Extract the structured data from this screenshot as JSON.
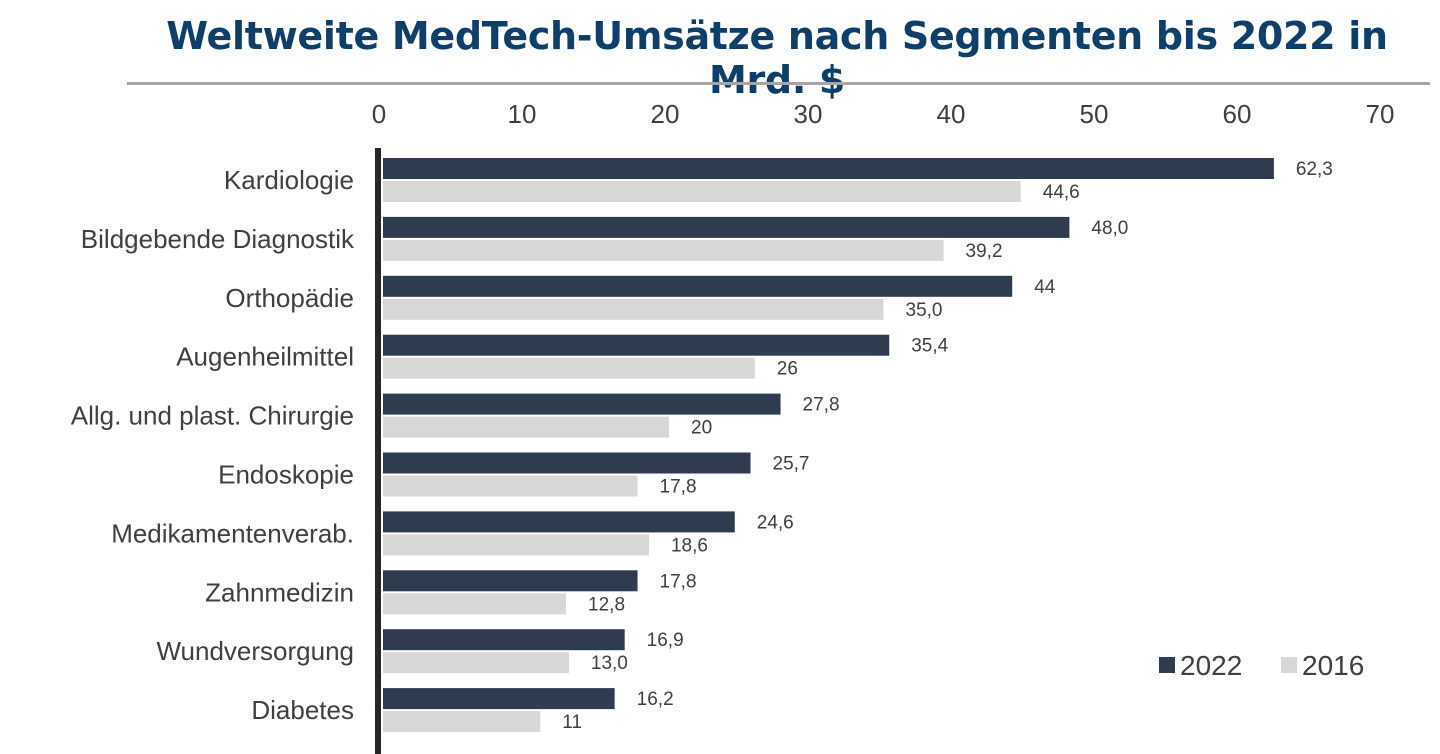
{
  "chart_data": {
    "type": "bar",
    "orientation": "horizontal",
    "title": "Weltweite MedTech-Umsätze nach Segmenten bis 2022 in Mrd. $",
    "xlim": [
      0,
      70
    ],
    "ticks": [
      "0",
      "10",
      "20",
      "30",
      "40",
      "50",
      "60",
      "70"
    ],
    "tick_values": [
      0,
      10,
      20,
      30,
      40,
      50,
      60,
      70
    ],
    "axis_position": "top",
    "grid": false,
    "legend_position": "bottom-right",
    "categories": [
      "Kardiologie",
      "Bildgebende Diagnostik",
      "Orthopädie",
      "Augenheilmittel",
      "Allg. und plast. Chirurgie",
      "Endoskopie",
      "Medikamentenverab.",
      "Zahnmedizin",
      "Wundversorgung",
      "Diabetes"
    ],
    "series": [
      {
        "name": "2022",
        "color": "#2f3b4f",
        "values": [
          62.3,
          48.0,
          44,
          35.4,
          27.8,
          25.7,
          24.6,
          17.8,
          16.9,
          16.2
        ],
        "labels": [
          "62,3",
          "48,0",
          "44",
          "35,4",
          "27,8",
          "25,7",
          "24,6",
          "17,8",
          "16,9",
          "16,2"
        ]
      },
      {
        "name": "2016",
        "color": "#d7d7d5",
        "values": [
          44.6,
          39.2,
          35.0,
          26,
          20,
          17.8,
          18.6,
          12.8,
          13.0,
          11
        ],
        "labels": [
          "44,6",
          "39,2",
          "35,0",
          "26",
          "20",
          "17,8",
          "18,6",
          "12,8",
          "13,0",
          "11"
        ]
      }
    ]
  }
}
